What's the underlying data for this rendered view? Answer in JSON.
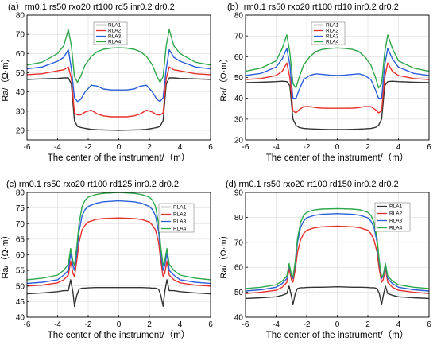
{
  "colors": {
    "RLA1": "#333333",
    "RLA2": "#e8302a",
    "RLA3": "#2b5fd9",
    "RLA4": "#2ea84a",
    "grid": "#d9d9d9",
    "axis": "#000000"
  },
  "chart_data": [
    {
      "type": "line",
      "title": "(a）rm0.1 rs50 rxo20 rt100 rd5 inr0.2 dr0.2",
      "xlabel": "The center of the instrument/（m）",
      "ylabel": "Ra/（Ω·m）",
      "xlim": [
        -6,
        6
      ],
      "ylim": [
        15,
        80
      ],
      "xticks": [
        "-6",
        "-4",
        "-2",
        "0",
        "2",
        "4",
        "6"
      ],
      "yticks": [
        "20",
        "30",
        "40",
        "50",
        "60",
        "70",
        "80"
      ],
      "grid": true,
      "legend_position": "top-center",
      "x": [
        -6,
        -5,
        -4,
        -3.6,
        -3.3,
        -3.1,
        -2.9,
        -2.7,
        -2.5,
        -2.2,
        -1.8,
        -1.4,
        -1,
        -0.5,
        0,
        0.5,
        1,
        1.4,
        1.8,
        2.2,
        2.5,
        2.7,
        2.9,
        3.1,
        3.3,
        3.6,
        4,
        5,
        6
      ],
      "series": [
        {
          "name": "RLA1",
          "values": [
            46.5,
            46.8,
            47,
            47.3,
            47.3,
            44,
            25,
            22,
            21.5,
            21,
            20.5,
            20.3,
            20.2,
            20.1,
            20,
            20.1,
            20.2,
            20.3,
            20.5,
            21,
            21.5,
            22,
            25,
            44,
            47.3,
            47.3,
            47,
            46.8,
            46.5
          ]
        },
        {
          "name": "RLA2",
          "values": [
            49,
            49.5,
            51,
            51.5,
            53,
            47,
            29,
            28,
            28,
            29.5,
            30.5,
            28.5,
            27.5,
            27,
            27,
            27,
            27.5,
            28.5,
            30.5,
            29.5,
            28,
            28,
            29,
            47,
            53,
            51.5,
            51,
            49.5,
            49
          ]
        },
        {
          "name": "RLA3",
          "values": [
            52,
            53,
            56,
            58,
            62,
            52,
            37,
            35,
            36,
            40,
            43.5,
            43,
            41.5,
            41,
            41,
            41,
            41.5,
            43,
            43.5,
            40,
            36,
            35,
            37,
            52,
            62,
            58,
            56,
            53,
            52
          ]
        },
        {
          "name": "RLA4",
          "values": [
            54,
            55.5,
            60,
            64,
            72.5,
            64,
            48,
            45,
            48,
            54,
            58.5,
            61,
            62.2,
            62.8,
            63,
            62.8,
            62.2,
            61,
            58.5,
            54,
            48,
            45,
            48,
            64,
            72.5,
            64,
            60,
            55.5,
            54
          ]
        }
      ]
    },
    {
      "type": "line",
      "title": "(b）rm0.1 rs50 rxo20 rt100 rd10 inr0.2 dr0.2",
      "xlabel": "The center of the instrument/（m）",
      "ylabel": "Ra/（Ω·m）",
      "xlim": [
        -6,
        6
      ],
      "ylim": [
        20,
        80
      ],
      "xticks": [
        "-6",
        "-4",
        "-2",
        "0",
        "2",
        "4",
        "6"
      ],
      "yticks": [
        "20",
        "30",
        "40",
        "50",
        "60",
        "70",
        "80"
      ],
      "grid": true,
      "legend_position": "top-center",
      "x": [
        -6,
        -5,
        -4,
        -3.6,
        -3.3,
        -3.1,
        -2.9,
        -2.7,
        -2.5,
        -2.2,
        -1.8,
        -1.4,
        -1,
        -0.5,
        0,
        0.5,
        1,
        1.4,
        1.8,
        2.2,
        2.5,
        2.7,
        2.9,
        3.1,
        3.3,
        3.6,
        4,
        5,
        6
      ],
      "series": [
        {
          "name": "RLA1",
          "values": [
            47.5,
            47.7,
            48,
            48.2,
            48,
            46,
            30,
            27,
            26,
            25.5,
            25.3,
            25.2,
            25.1,
            25,
            25,
            25,
            25.1,
            25.2,
            25.3,
            25.5,
            26,
            27,
            30,
            46,
            48,
            48.2,
            48,
            47.7,
            47.5
          ]
        },
        {
          "name": "RLA2",
          "values": [
            49,
            49.5,
            51,
            53,
            57,
            50,
            34,
            33,
            34.5,
            36,
            36,
            35.5,
            35.3,
            35.2,
            35.2,
            35.2,
            35.3,
            35.5,
            36,
            36,
            34.5,
            33,
            34,
            50,
            57,
            53,
            51,
            49.5,
            49
          ]
        },
        {
          "name": "RLA3",
          "values": [
            51,
            52,
            55,
            59,
            64,
            56,
            40,
            40,
            44,
            49,
            51,
            51.8,
            51.5,
            51.2,
            51,
            51.2,
            51.5,
            51.8,
            51,
            49,
            44,
            40,
            40,
            56,
            64,
            59,
            55,
            52,
            51
          ]
        },
        {
          "name": "RLA4",
          "values": [
            53,
            54.5,
            58,
            64,
            70.5,
            62,
            47,
            45,
            50,
            56,
            60,
            62.5,
            63.5,
            64,
            64.2,
            64,
            63.5,
            62.5,
            60,
            56,
            50,
            45,
            47,
            62,
            70.5,
            64,
            58,
            54.5,
            53
          ]
        }
      ]
    },
    {
      "type": "line",
      "title": "(c) rm0.1 rs50 rxo20 rt100 rd125 inr0.2 dr0.2",
      "xlabel": "The center of the instrument/（m）",
      "ylabel": "Ra/（Ω·m）",
      "xlim": [
        -6,
        6
      ],
      "ylim": [
        40,
        80
      ],
      "xticks": [
        "-6",
        "-4",
        "-2",
        "0",
        "2",
        "4",
        "6"
      ],
      "yticks": [
        "40",
        "45",
        "50",
        "55",
        "60",
        "65",
        "70",
        "75",
        "80"
      ],
      "grid": true,
      "legend_position": "right",
      "x": [
        -6,
        -5,
        -4,
        -3.6,
        -3.3,
        -3.15,
        -3,
        -2.9,
        -2.75,
        -2.6,
        -2.4,
        -2.2,
        -2,
        -1.5,
        -1,
        0,
        1,
        1.5,
        2,
        2.2,
        2.4,
        2.6,
        2.75,
        2.9,
        3,
        3.15,
        3.3,
        3.6,
        4,
        5,
        6
      ],
      "series": [
        {
          "name": "RLA1",
          "values": [
            47.5,
            47.8,
            48.2,
            48.5,
            48.5,
            52,
            48,
            43.5,
            47,
            49,
            49.3,
            49.3,
            49.4,
            49.5,
            49.5,
            49.5,
            49.5,
            49.5,
            49.4,
            49.3,
            49.3,
            49,
            47,
            43.5,
            48,
            52,
            48.5,
            48.5,
            48.2,
            47.8,
            47.5
          ]
        },
        {
          "name": "RLA2",
          "values": [
            50,
            50.3,
            51,
            52,
            53.5,
            58,
            54,
            53,
            58,
            64,
            68,
            69.5,
            70.5,
            71.3,
            71.6,
            71.8,
            71.6,
            71.3,
            70.5,
            69.5,
            68,
            64,
            58,
            53,
            54,
            58,
            53.5,
            52,
            51,
            50.3,
            50
          ]
        },
        {
          "name": "RLA3",
          "values": [
            50.8,
            51.2,
            52,
            53.5,
            55,
            60.5,
            56.5,
            55,
            60.5,
            67.5,
            72.5,
            74.5,
            75.5,
            76.5,
            77,
            77.3,
            77,
            76.5,
            75.5,
            74.5,
            72.5,
            67.5,
            60.5,
            55,
            56.5,
            60.5,
            55,
            53.5,
            52,
            51.2,
            50.8
          ]
        },
        {
          "name": "RLA4",
          "values": [
            52,
            52.5,
            53.5,
            55,
            57,
            62,
            58,
            56.5,
            62.5,
            70,
            75.5,
            77.5,
            78.5,
            79.3,
            79.7,
            80,
            79.7,
            79.3,
            78.5,
            77.5,
            75.5,
            70,
            62.5,
            56.5,
            58,
            62,
            57,
            55,
            53.5,
            52.5,
            52
          ]
        }
      ]
    },
    {
      "type": "line",
      "title": "(d) rm0.1 rs50 rxo20 rt100 rd150 inr0.2 dr0.2",
      "xlabel": "The center of the instrument/（m）",
      "ylabel": "Ra/（Ω·m）",
      "xlim": [
        -6,
        6
      ],
      "ylim": [
        40,
        90
      ],
      "xticks": [
        "-6",
        "-4",
        "-2",
        "0",
        "2",
        "4",
        "6"
      ],
      "yticks": [
        "40",
        "50",
        "60",
        "70",
        "80",
        "90"
      ],
      "grid": true,
      "legend_position": "right",
      "x": [
        -6,
        -5,
        -4,
        -3.6,
        -3.3,
        -3.15,
        -3,
        -2.9,
        -2.75,
        -2.6,
        -2.4,
        -2.2,
        -2,
        -1.5,
        -1,
        0,
        1,
        1.5,
        2,
        2.2,
        2.4,
        2.6,
        2.75,
        2.9,
        3,
        3.15,
        3.3,
        3.6,
        4,
        5,
        6
      ],
      "series": [
        {
          "name": "RLA1",
          "values": [
            47.5,
            47.8,
            48.2,
            48.8,
            49.5,
            52.5,
            48.5,
            45,
            49.5,
            51.5,
            51.8,
            51.8,
            51.9,
            52,
            52,
            52.2,
            52,
            52,
            51.9,
            51.8,
            51.8,
            51.5,
            49.5,
            45,
            48.5,
            52.5,
            49.5,
            48.8,
            48.2,
            47.8,
            47.5
          ]
        },
        {
          "name": "RLA2",
          "values": [
            49.5,
            50,
            50.8,
            52,
            54,
            59.5,
            55,
            54,
            59,
            66,
            71,
            73.5,
            74.8,
            75.8,
            76.2,
            76.5,
            76.2,
            75.8,
            74.8,
            73.5,
            71,
            66,
            59,
            54,
            55,
            59.5,
            54,
            52,
            50.8,
            50,
            49.5
          ]
        },
        {
          "name": "RLA3",
          "values": [
            50.5,
            51,
            52,
            53.5,
            55.5,
            61,
            56.5,
            55.5,
            61.5,
            70,
            76,
            78.5,
            79.8,
            80.8,
            81.2,
            81.5,
            81.2,
            80.8,
            79.8,
            78.5,
            76,
            70,
            61.5,
            55.5,
            56.5,
            61,
            55.5,
            53.5,
            52,
            51,
            50.5
          ]
        },
        {
          "name": "RLA4",
          "values": [
            51.5,
            52,
            53,
            54.5,
            56.5,
            61.5,
            57,
            56,
            62.5,
            71.5,
            78,
            80.8,
            82,
            83,
            83.3,
            83.5,
            83.3,
            83,
            82,
            80.8,
            78,
            71.5,
            62.5,
            56,
            57,
            61.5,
            56.5,
            54.5,
            53,
            52,
            51.5
          ]
        }
      ]
    }
  ]
}
